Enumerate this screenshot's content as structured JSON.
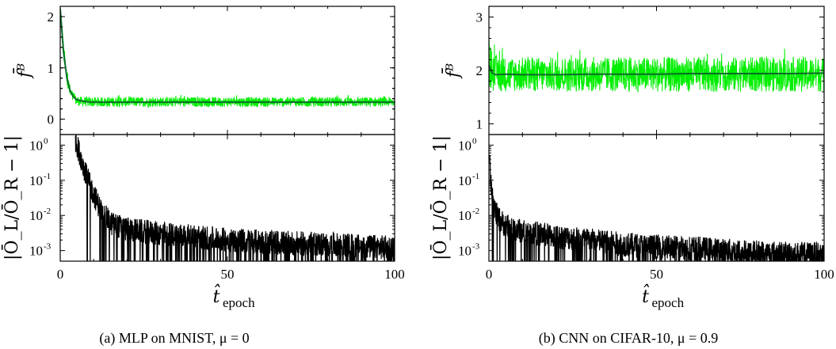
{
  "figure": {
    "captions": [
      "(a) MLP on MNIST, μ = 0",
      "(b) CNN on CIFAR-10, μ = 0.9"
    ]
  },
  "chart_data": [
    {
      "type": "line",
      "panel": "a-top",
      "xlabel": "t̂_epoch",
      "ylabel": "f̄^B",
      "xlim": [
        0,
        100
      ],
      "ylim": [
        -0.3,
        2.2
      ],
      "yticks": [
        "0",
        "1",
        "2"
      ],
      "xticks": [
        "0",
        "50",
        "100"
      ],
      "series": [
        {
          "role": "noisy-band",
          "color": "#00ee00",
          "x": [
            0,
            1,
            2,
            3,
            4,
            5,
            6,
            8,
            10,
            15,
            20,
            30,
            40,
            50,
            60,
            70,
            80,
            90,
            100
          ],
          "y_low": [
            2.0,
            1.15,
            0.6,
            0.38,
            0.3,
            0.26,
            0.25,
            0.24,
            0.24,
            0.24,
            0.24,
            0.24,
            0.24,
            0.24,
            0.24,
            0.24,
            0.24,
            0.24,
            0.24
          ],
          "y_high": [
            2.2,
            1.5,
            0.95,
            0.65,
            0.5,
            0.45,
            0.44,
            0.43,
            0.43,
            0.43,
            0.43,
            0.43,
            0.43,
            0.43,
            0.43,
            0.43,
            0.43,
            0.43,
            0.43
          ]
        },
        {
          "role": "mean",
          "color": "#0b6b2b",
          "x": [
            0,
            1,
            2,
            3,
            4,
            5,
            6,
            8,
            10,
            15,
            20,
            30,
            40,
            50,
            60,
            70,
            80,
            90,
            100
          ],
          "y": [
            2.15,
            1.3,
            0.8,
            0.55,
            0.43,
            0.38,
            0.36,
            0.34,
            0.33,
            0.33,
            0.33,
            0.33,
            0.33,
            0.33,
            0.33,
            0.33,
            0.33,
            0.33,
            0.33
          ]
        }
      ]
    },
    {
      "type": "line",
      "panel": "a-bottom",
      "scale": "log",
      "xlabel": "t̂_epoch",
      "ylabel": "|Ō_L/Ō_R − 1|",
      "xlim": [
        0,
        100
      ],
      "ylim": [
        0.0005,
        2
      ],
      "yticks": [
        "10^0",
        "10^-1",
        "10^-2",
        "10^-3"
      ],
      "xticks": [
        "0",
        "50",
        "100"
      ],
      "series": [
        {
          "role": "ratio",
          "color": "#000000",
          "x": [
            4.5,
            6,
            8,
            10,
            12,
            15,
            20,
            30,
            40,
            50,
            60,
            70,
            80,
            90,
            100
          ],
          "y": [
            1.5,
            0.5,
            0.12,
            0.04,
            0.015,
            0.006,
            0.004,
            0.003,
            0.0025,
            0.002,
            0.0018,
            0.0016,
            0.0015,
            0.0013,
            0.0012
          ]
        }
      ]
    },
    {
      "type": "line",
      "panel": "b-top",
      "xlabel": "t̂_epoch",
      "ylabel": "f̄^B",
      "xlim": [
        0,
        100
      ],
      "ylim": [
        0.8,
        3.2
      ],
      "yticks": [
        "1",
        "2",
        "3"
      ],
      "xticks": [
        "0",
        "50",
        "100"
      ],
      "series": [
        {
          "role": "noisy-band",
          "color": "#00ee00",
          "x": [
            0,
            1,
            2,
            5,
            10,
            20,
            30,
            40,
            50,
            60,
            70,
            80,
            90,
            100
          ],
          "y_low": [
            1.65,
            1.6,
            1.6,
            1.6,
            1.6,
            1.6,
            1.6,
            1.6,
            1.6,
            1.6,
            1.6,
            1.6,
            1.6,
            1.6
          ],
          "y_high": [
            2.6,
            2.35,
            2.3,
            2.25,
            2.25,
            2.25,
            2.25,
            2.25,
            2.25,
            2.25,
            2.25,
            2.25,
            2.25,
            2.25
          ]
        },
        {
          "role": "mean",
          "color": "#0b6b2b",
          "x": [
            0,
            1,
            2,
            5,
            10,
            20,
            30,
            40,
            50,
            60,
            70,
            80,
            90,
            100
          ],
          "y": [
            2.1,
            1.95,
            1.92,
            1.93,
            1.92,
            1.92,
            1.93,
            1.93,
            1.93,
            1.94,
            1.94,
            1.94,
            1.94,
            1.95
          ]
        }
      ]
    },
    {
      "type": "line",
      "panel": "b-bottom",
      "scale": "log",
      "xlabel": "t̂_epoch",
      "ylabel": "|Ō_L/Ō_R − 1|",
      "xlim": [
        0,
        100
      ],
      "ylim": [
        0.0005,
        2
      ],
      "yticks": [
        "10^0",
        "10^-1",
        "10^-2",
        "10^-3"
      ],
      "xticks": [
        "0",
        "50",
        "100"
      ],
      "series": [
        {
          "role": "ratio",
          "color": "#000000",
          "x": [
            0.2,
            0.5,
            1,
            2,
            3,
            5,
            8,
            10,
            15,
            20,
            30,
            40,
            50,
            60,
            70,
            80,
            90,
            100
          ],
          "y": [
            0.8,
            0.1,
            0.03,
            0.012,
            0.008,
            0.005,
            0.004,
            0.0035,
            0.003,
            0.0025,
            0.002,
            0.0015,
            0.0013,
            0.0012,
            0.001,
            0.0009,
            0.0008,
            0.0008
          ]
        }
      ]
    }
  ]
}
